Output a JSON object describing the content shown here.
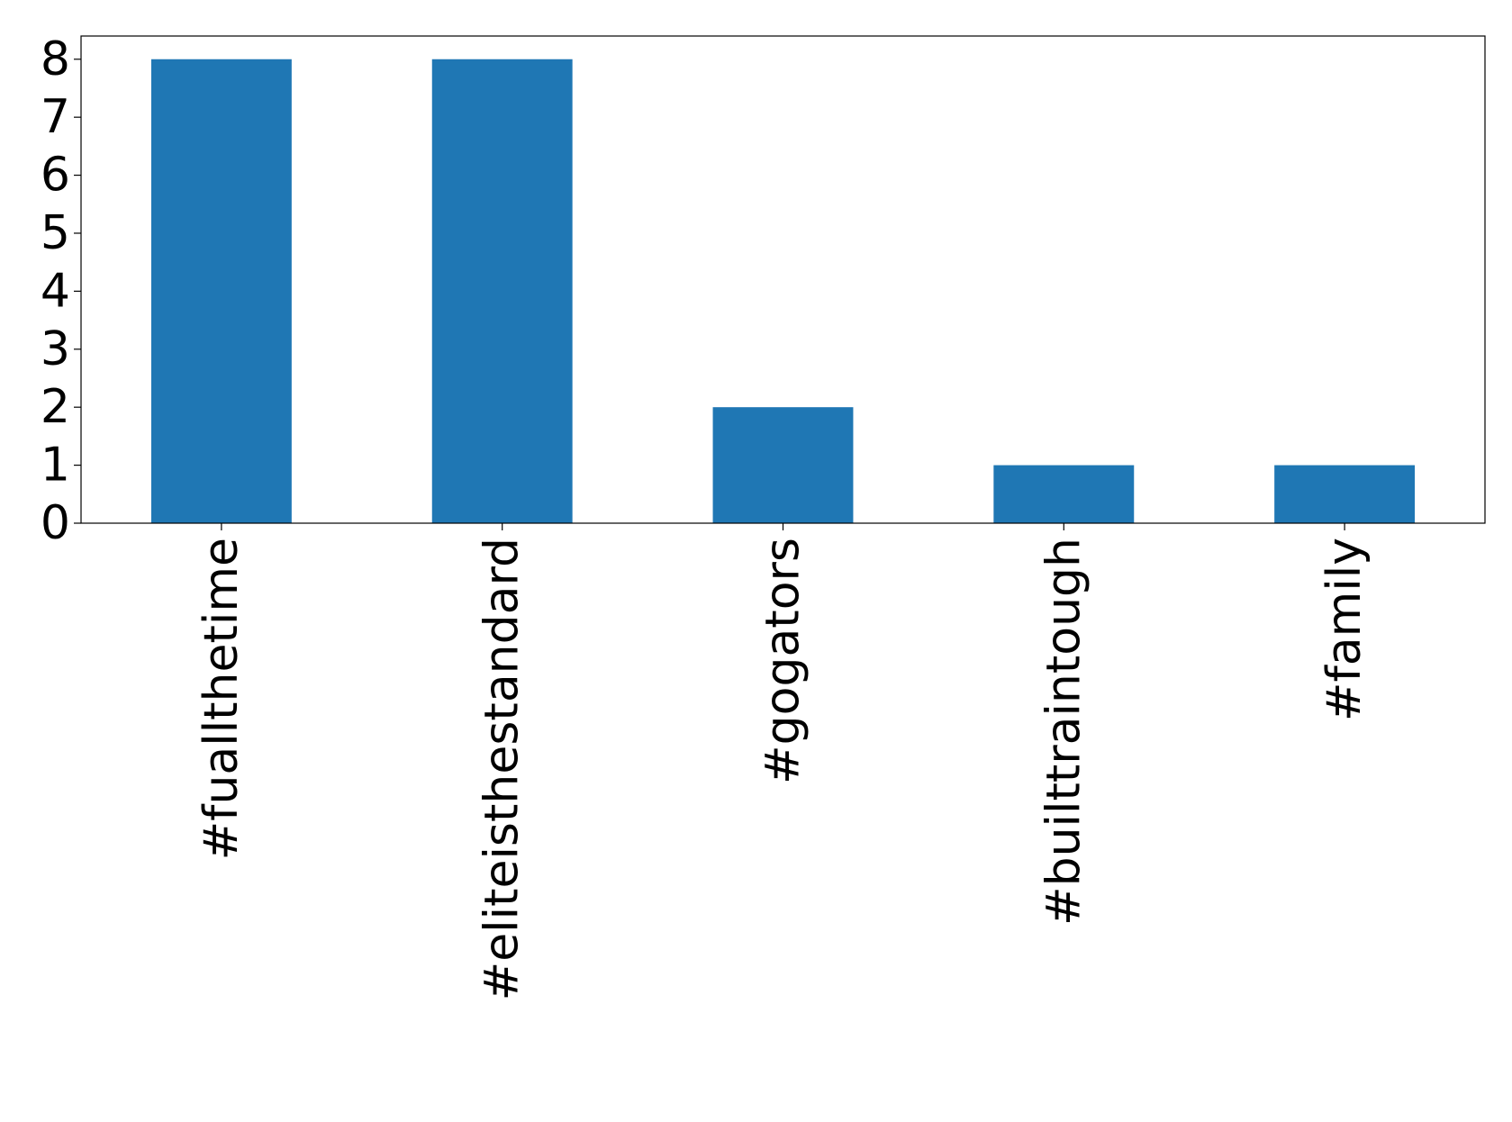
{
  "chart_data": {
    "type": "bar",
    "categories": [
      "#fuallthetime",
      "#eliteisthestandard",
      "#gogators",
      "#builttraintough",
      "#family"
    ],
    "values": [
      8,
      8,
      2,
      1,
      1
    ],
    "color": "#1f77b4",
    "ylim": [
      0,
      8.4
    ],
    "yticks": [
      0,
      1,
      2,
      3,
      4,
      5,
      6,
      7,
      8
    ],
    "grid": false
  }
}
